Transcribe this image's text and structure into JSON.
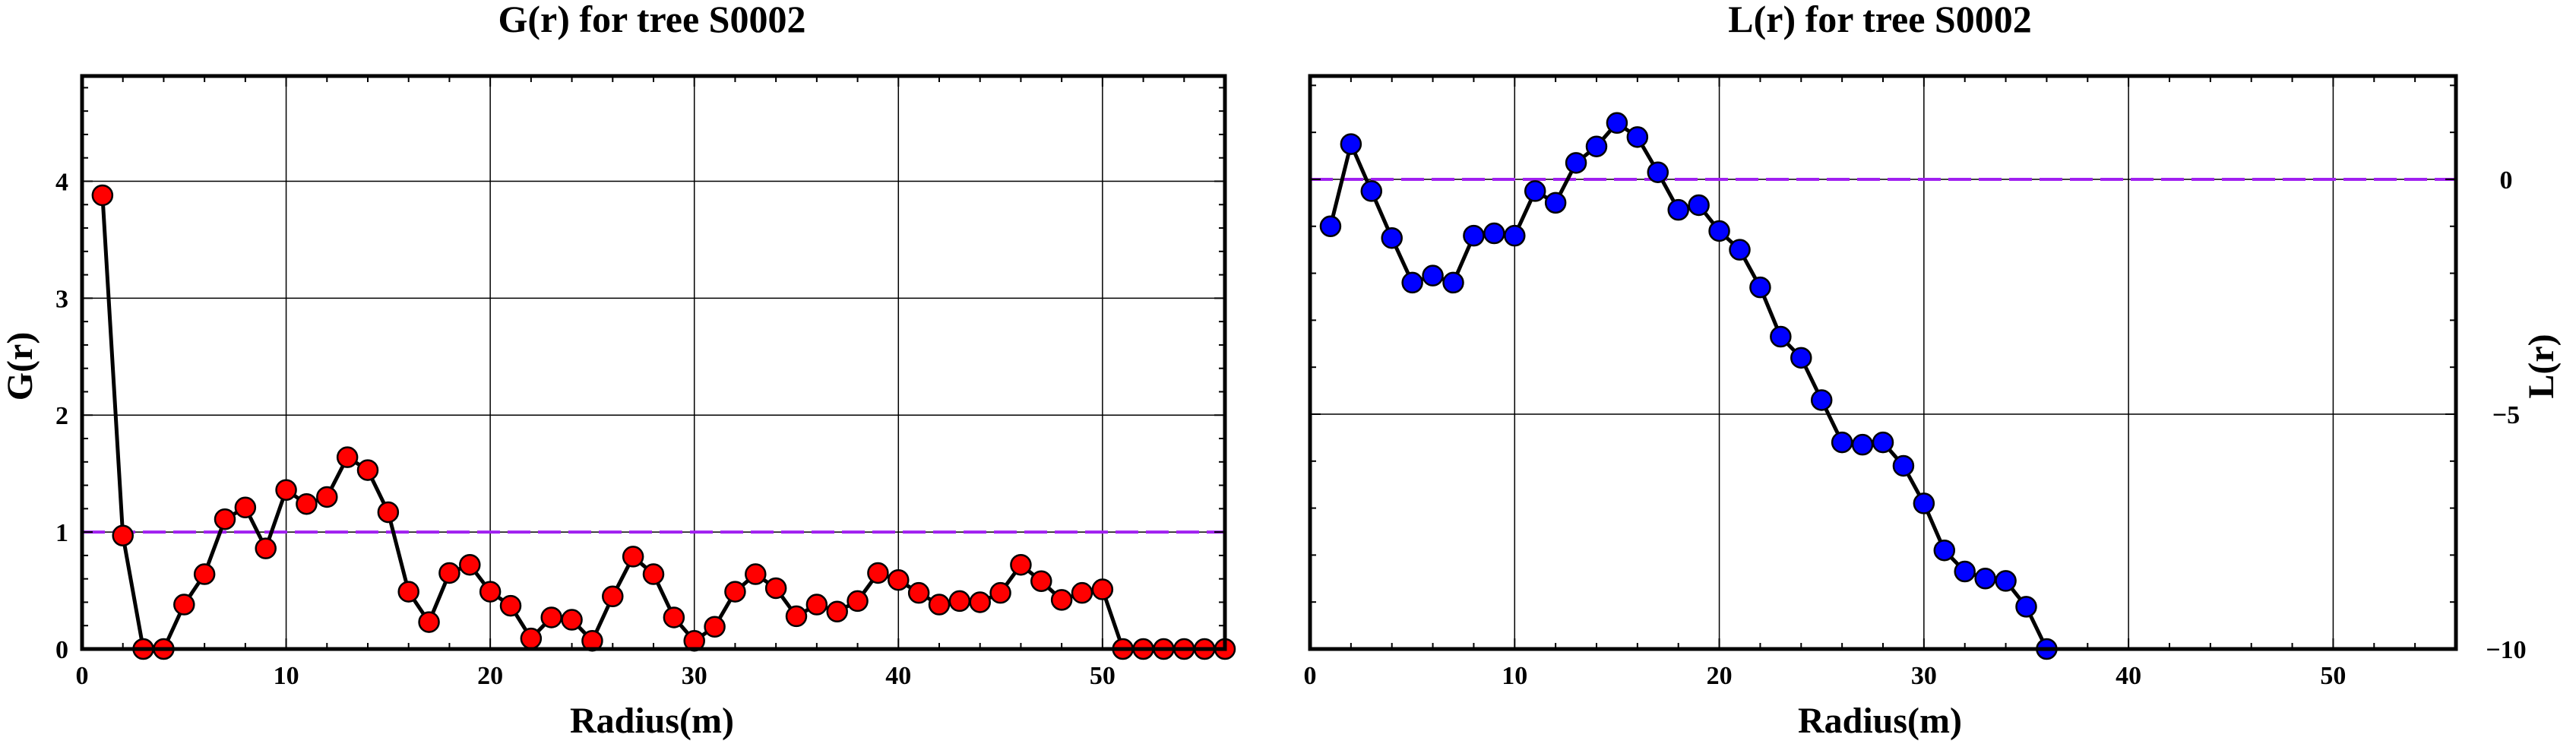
{
  "chart_data": [
    {
      "type": "line",
      "title": "G(r) for tree S0002",
      "xlabel": "Radius(m)",
      "ylabel": "G(r)",
      "xlim": [
        0,
        56
      ],
      "ylim": [
        0,
        4.9
      ],
      "xticks": [
        0,
        10,
        20,
        30,
        40,
        50
      ],
      "yticks": [
        0,
        1,
        2,
        3,
        4
      ],
      "grid": true,
      "reference_line": {
        "y": 1,
        "color": "#a020f0",
        "style": "dashed"
      },
      "series": [
        {
          "line_color": "#000000",
          "marker_color": "#ff0000",
          "x": [
            1,
            2,
            3,
            4,
            5,
            6,
            7,
            8,
            9,
            10,
            11,
            12,
            13,
            14,
            15,
            16,
            17,
            18,
            19,
            20,
            21,
            22,
            23,
            24,
            25,
            26,
            27,
            28,
            29,
            30,
            31,
            32,
            33,
            34,
            35,
            36,
            37,
            38,
            39,
            40,
            41,
            42,
            43,
            44,
            45,
            46,
            47,
            48,
            49,
            50,
            51,
            52,
            53,
            54,
            55,
            56
          ],
          "values": [
            3.88,
            0.97,
            0.0,
            0.0,
            0.38,
            0.64,
            1.11,
            1.21,
            0.86,
            1.36,
            1.24,
            1.3,
            1.64,
            1.53,
            1.17,
            0.49,
            0.23,
            0.65,
            0.72,
            0.49,
            0.37,
            0.09,
            0.27,
            0.25,
            0.07,
            0.45,
            0.79,
            0.64,
            0.27,
            0.07,
            0.19,
            0.49,
            0.64,
            0.52,
            0.28,
            0.38,
            0.32,
            0.41,
            0.65,
            0.59,
            0.48,
            0.38,
            0.41,
            0.4,
            0.48,
            0.72,
            0.58,
            0.42,
            0.48,
            0.51,
            0.0,
            0.0,
            0.0,
            0.0,
            0.0,
            0.0
          ]
        }
      ]
    },
    {
      "type": "line",
      "title": "L(r) for tree S0002",
      "xlabel": "Radius(m)",
      "ylabel": "L(r)",
      "xlim": [
        0,
        56
      ],
      "ylim": [
        -10,
        2.2
      ],
      "xticks": [
        0,
        10,
        20,
        30,
        40,
        50
      ],
      "yticks": [
        -10,
        -5,
        0
      ],
      "ytick_side": "right",
      "grid": true,
      "reference_line": {
        "y": 0,
        "color": "#a020f0",
        "style": "dashed"
      },
      "series": [
        {
          "line_color": "#000000",
          "marker_color": "#0000ff",
          "x": [
            1,
            2,
            3,
            4,
            5,
            6,
            7,
            8,
            9,
            10,
            11,
            12,
            13,
            14,
            15,
            16,
            17,
            18,
            19,
            20,
            21,
            22,
            23,
            24,
            25,
            26,
            27,
            28,
            29,
            30,
            31,
            32,
            33,
            34,
            35,
            36
          ],
          "values": [
            -1.0,
            0.75,
            -0.25,
            -1.25,
            -2.2,
            -2.05,
            -2.2,
            -1.2,
            -1.15,
            -1.2,
            -0.25,
            -0.5,
            0.35,
            0.7,
            1.2,
            0.9,
            0.15,
            -0.65,
            -0.55,
            -1.1,
            -1.5,
            -2.3,
            -3.35,
            -3.8,
            -4.7,
            -5.6,
            -5.65,
            -5.6,
            -6.1,
            -6.9,
            -7.9,
            -8.35,
            -8.5,
            -8.55,
            -9.1,
            -10.0
          ]
        }
      ]
    }
  ]
}
